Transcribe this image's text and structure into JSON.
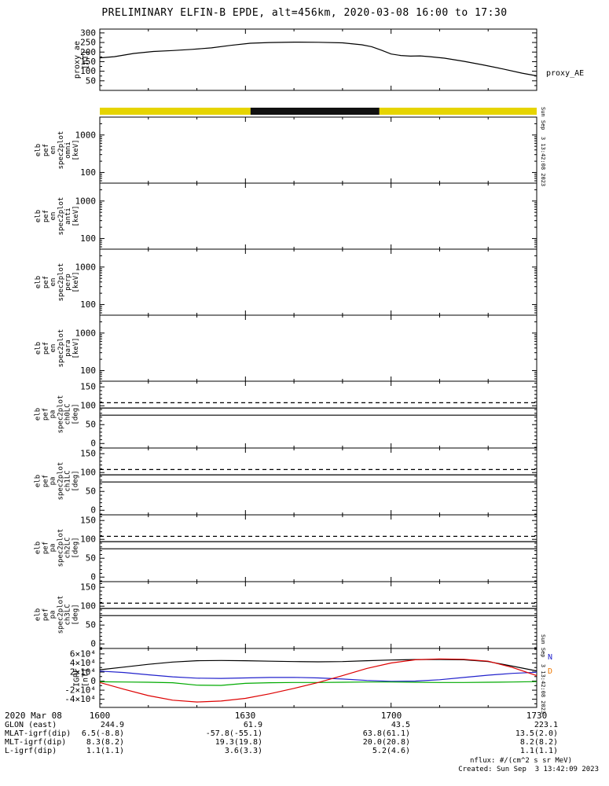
{
  "header": {
    "title": "PRELIMINARY ELFIN-B EPDE, alt=456km, 2020-03-08 16:00 to 17:30"
  },
  "side": {
    "timestamp": "Sun Sep  3 13:42:08 2023"
  },
  "footer": {
    "nflux": "nflux: #/(cm^2 s sr MeV)",
    "created": "Created: Sun Sep  3 13:42:09 2023"
  },
  "labels": {
    "proxy_right": "proxy_AE",
    "igrf_n": "N",
    "igrf_d": "D"
  },
  "colors": {
    "axis": "#000000",
    "bar_yellow": "#e6d400",
    "bar_black": "#101010",
    "igrf_total": "#000000",
    "igrf_n": "#2222cc",
    "igrf_e": "#00aa00",
    "igrf_d": "#dd0000",
    "igrf_n_label": "#2222cc",
    "igrf_d_label": "#ee7700"
  },
  "xaxis": {
    "date_label": "2020 Mar 08",
    "tick_labels": [
      "1600",
      "1630",
      "1700",
      "1730"
    ],
    "tick_minutes": [
      0,
      30,
      60,
      90
    ],
    "minor_minutes": [
      10,
      20,
      40,
      50,
      70,
      80
    ],
    "total_minutes": 90
  },
  "status_bar": {
    "segments": [
      {
        "color": "#e6d400",
        "from": 0.0,
        "to": 0.345
      },
      {
        "color": "#101010",
        "from": 0.345,
        "to": 0.64
      },
      {
        "color": "#e6d400",
        "from": 0.64,
        "to": 1.0
      }
    ]
  },
  "ephemeris": {
    "rows": [
      {
        "label": "GLON (east)",
        "values": [
          "244.9",
          "61.9",
          "43.5",
          "223.1"
        ]
      },
      {
        "label": "MLAT-igrf(dip)",
        "values": [
          "6.5(-8.8)",
          "-57.8(-55.1)",
          "63.8(61.1)",
          "13.5(2.0)"
        ]
      },
      {
        "label": "MLT-igrf(dip)",
        "values": [
          "8.3(8.2)",
          "19.3(19.8)",
          "20.0(20.8)",
          "8.2(8.2)"
        ]
      },
      {
        "label": "L-igrf(dip)",
        "values": [
          "1.1(1.1)",
          "3.6(3.3)",
          "5.2(4.6)",
          "1.1(1.1)"
        ]
      }
    ]
  },
  "chart_data": [
    {
      "panel": "proxy",
      "type": "line",
      "ylabel": "proxy_ae\n[nT]",
      "ylim": [
        0,
        320
      ],
      "yticks": [
        50,
        100,
        150,
        200,
        250,
        300
      ],
      "yminor": [
        25,
        75,
        125,
        175,
        225,
        275
      ],
      "x_minutes": [
        0,
        3,
        7,
        11,
        15,
        19,
        23,
        27,
        31,
        35,
        40,
        45,
        50,
        54,
        56,
        58,
        60,
        62,
        64,
        66,
        68,
        71,
        75,
        79,
        83,
        87,
        90
      ],
      "series": [
        {
          "name": "proxy_AE",
          "color": "#000000",
          "values": [
            170,
            176,
            193,
            203,
            208,
            214,
            222,
            235,
            246,
            250,
            252,
            251,
            248,
            238,
            228,
            210,
            190,
            182,
            179,
            180,
            176,
            168,
            152,
            133,
            112,
            90,
            76
          ]
        }
      ]
    },
    {
      "panel": "spec0",
      "type": "spectrogram",
      "ylabel": "elb\npef\nen\nspec2plot\nomni\n[keV]",
      "yscale": "log",
      "ylim": [
        52,
        3000
      ],
      "yticks": [
        100,
        1000
      ],
      "yminor": [
        60,
        70,
        80,
        90,
        200,
        300,
        400,
        500,
        600,
        700,
        800,
        900,
        2000,
        3000
      ],
      "series": []
    },
    {
      "panel": "spec1",
      "type": "spectrogram",
      "ylabel": "elb\npef\nen\nspec2plot\nanti\n[keV]",
      "yscale": "log",
      "ylim": [
        52,
        3000
      ],
      "yticks": [
        100,
        1000
      ],
      "yminor": [
        60,
        70,
        80,
        90,
        200,
        300,
        400,
        500,
        600,
        700,
        800,
        900,
        2000,
        3000
      ],
      "series": []
    },
    {
      "panel": "spec2",
      "type": "spectrogram",
      "ylabel": "elb\npef\nen\nspec2plot\nperp\n[keV]",
      "yscale": "log",
      "ylim": [
        52,
        3000
      ],
      "yticks": [
        100,
        1000
      ],
      "yminor": [
        60,
        70,
        80,
        90,
        200,
        300,
        400,
        500,
        600,
        700,
        800,
        900,
        2000,
        3000
      ],
      "series": []
    },
    {
      "panel": "spec3",
      "type": "spectrogram",
      "ylabel": "elb\npef\nen\nspec2plot\npara\n[keV]",
      "yscale": "log",
      "ylim": [
        52,
        3000
      ],
      "yticks": [
        100,
        1000
      ],
      "yminor": [
        60,
        70,
        80,
        90,
        200,
        300,
        400,
        500,
        600,
        700,
        800,
        900,
        2000,
        3000
      ],
      "series": []
    },
    {
      "panel": "pa0",
      "type": "line",
      "ylabel": "elb\npef\npa\nspec2plot\nch0LC\n[deg]",
      "ylim": [
        -12,
        165
      ],
      "yticks": [
        0,
        50,
        100,
        150
      ],
      "yminor": [
        -10,
        10,
        20,
        30,
        40,
        60,
        70,
        80,
        90,
        110,
        120,
        130,
        140,
        160
      ],
      "series": [
        {
          "name": "dashed-reference-line",
          "color": "#000000",
          "style": "dashed",
          "constant": 108
        },
        {
          "name": "solid-reference-line-upper",
          "color": "#000000",
          "style": "solid",
          "constant": 94
        },
        {
          "name": "solid-reference-line-lower",
          "color": "#000000",
          "style": "solid",
          "constant": 75
        }
      ]
    },
    {
      "panel": "pa1",
      "type": "line",
      "ylabel": "elb\npef\npa\nspec2plot\nch1LC\n[deg]",
      "ylim": [
        -12,
        165
      ],
      "yticks": [
        0,
        50,
        100,
        150
      ],
      "yminor": [
        -10,
        10,
        20,
        30,
        40,
        60,
        70,
        80,
        90,
        110,
        120,
        130,
        140,
        160
      ],
      "series": [
        {
          "name": "dashed-reference-line",
          "color": "#000000",
          "style": "dashed",
          "constant": 108
        },
        {
          "name": "solid-reference-line-upper",
          "color": "#000000",
          "style": "solid",
          "constant": 94
        },
        {
          "name": "solid-reference-line-lower",
          "color": "#000000",
          "style": "solid",
          "constant": 75
        }
      ]
    },
    {
      "panel": "pa2",
      "type": "line",
      "ylabel": "elb\npef\npa\nspec2plot\nch2LC\n[deg]",
      "ylim": [
        -12,
        165
      ],
      "yticks": [
        0,
        50,
        100,
        150
      ],
      "yminor": [
        -10,
        10,
        20,
        30,
        40,
        60,
        70,
        80,
        90,
        110,
        120,
        130,
        140,
        160
      ],
      "series": [
        {
          "name": "dashed-reference-line",
          "color": "#000000",
          "style": "dashed",
          "constant": 108
        },
        {
          "name": "solid-reference-line-upper",
          "color": "#000000",
          "style": "solid",
          "constant": 94
        },
        {
          "name": "solid-reference-line-lower",
          "color": "#000000",
          "style": "solid",
          "constant": 75
        }
      ]
    },
    {
      "panel": "pa3",
      "type": "line",
      "ylabel": "elb\npef\npa\nspec2plot\nch3LC\n[deg]",
      "ylim": [
        -12,
        165
      ],
      "yticks": [
        0,
        50,
        100,
        150
      ],
      "yminor": [
        -10,
        10,
        20,
        30,
        40,
        60,
        70,
        80,
        90,
        110,
        120,
        130,
        140,
        160
      ],
      "series": [
        {
          "name": "dashed-reference-line",
          "color": "#000000",
          "style": "dashed",
          "constant": 108
        },
        {
          "name": "solid-reference-line-upper",
          "color": "#000000",
          "style": "solid",
          "constant": 94
        },
        {
          "name": "solid-reference-line-lower",
          "color": "#000000",
          "style": "solid",
          "constant": 75
        }
      ]
    },
    {
      "panel": "igrf",
      "type": "line",
      "ylabel": "IGRF\n[nT]",
      "ylim": [
        -58000,
        72000
      ],
      "yticks": [
        -40000,
        -20000,
        0,
        20000,
        40000,
        60000
      ],
      "ytick_labels": [
        "-4×10⁴",
        "-2×10⁴",
        "0",
        "2×10⁴",
        "4×10⁴",
        "6×10⁴"
      ],
      "yminor": [
        -50000,
        -30000,
        -10000,
        10000,
        30000,
        50000,
        70000
      ],
      "x_minutes": [
        0,
        5,
        10,
        15,
        20,
        25,
        30,
        35,
        40,
        45,
        50,
        55,
        60,
        65,
        70,
        75,
        80,
        85,
        90
      ],
      "series": [
        {
          "name": "B-total",
          "color": "#000000",
          "values": [
            25000,
            31000,
            37000,
            42000,
            45000,
            45500,
            45000,
            44000,
            43000,
            42500,
            43000,
            45000,
            46500,
            47500,
            47800,
            47000,
            43000,
            33000,
            22500
          ]
        },
        {
          "name": "N",
          "color": "#2222cc",
          "values": [
            22000,
            19000,
            14000,
            9500,
            6500,
            6000,
            7000,
            8000,
            8200,
            7000,
            4500,
            1500,
            -500,
            0,
            3000,
            8000,
            13000,
            17000,
            19500
          ]
        },
        {
          "name": "E",
          "color": "#00aa00",
          "values": [
            -1500,
            -2000,
            -2500,
            -3500,
            -9000,
            -9500,
            -5000,
            -3500,
            -3000,
            -3000,
            -2500,
            -2000,
            -2000,
            -2500,
            -3000,
            -3000,
            -2500,
            -2000,
            -1200
          ]
        },
        {
          "name": "D",
          "color": "#dd0000",
          "values": [
            -3000,
            -18000,
            -32000,
            -42000,
            -46000,
            -44000,
            -38000,
            -28000,
            -16000,
            -3000,
            12000,
            28000,
            40000,
            47000,
            49000,
            48000,
            44000,
            30000,
            12000
          ]
        }
      ]
    }
  ]
}
